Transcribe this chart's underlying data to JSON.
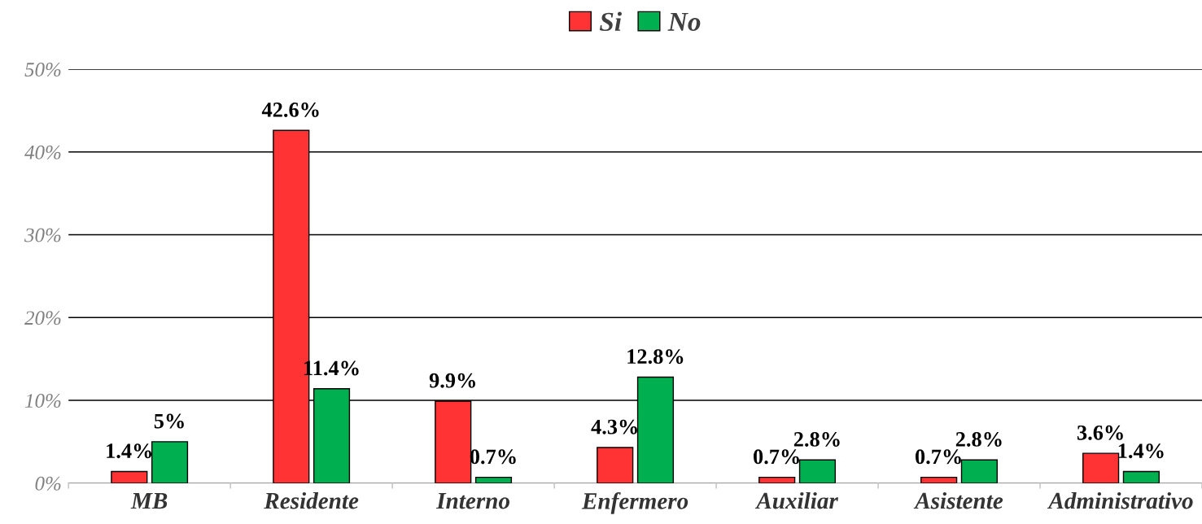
{
  "chart_data": {
    "type": "bar",
    "categories": [
      "MB",
      "Residente",
      "Interno",
      "Enfermero",
      "Auxiliar",
      "Asistente",
      "Administrativo"
    ],
    "series": [
      {
        "name": "Si",
        "color": "#ff3333",
        "values": [
          1.4,
          42.6,
          9.9,
          4.3,
          0.7,
          0.7,
          3.6
        ],
        "value_labels": [
          "1.4%",
          "42.6%",
          "9.9%",
          "4.3%",
          "0.7%",
          "0.7%",
          "3.6%"
        ]
      },
      {
        "name": "No",
        "color": "#00b050",
        "values": [
          5,
          11.4,
          0.7,
          12.8,
          2.8,
          2.8,
          1.4
        ],
        "value_labels": [
          "5%",
          "11.4%",
          "0.7%",
          "12.8%",
          "2.8%",
          "2.8%",
          "1.4%"
        ]
      }
    ],
    "ylim": [
      0,
      50
    ],
    "yticks": [
      {
        "value": 0,
        "label": "0%"
      },
      {
        "value": 10,
        "label": "10%"
      },
      {
        "value": 20,
        "label": "20%"
      },
      {
        "value": 30,
        "label": "30%"
      },
      {
        "value": 40,
        "label": "40%"
      },
      {
        "value": 50,
        "label": "50%"
      }
    ],
    "grid": "y",
    "legend": "top"
  }
}
